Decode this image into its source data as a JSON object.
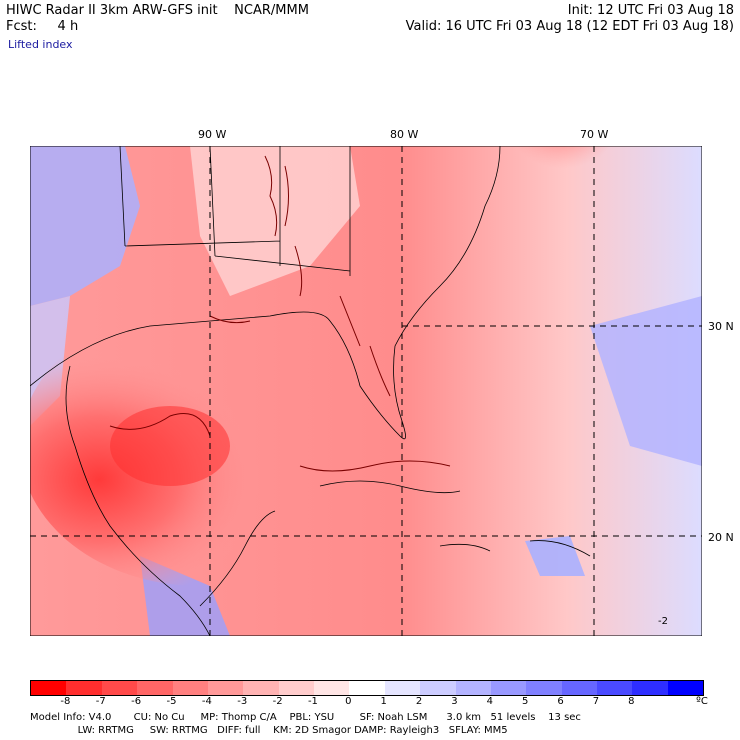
{
  "header": {
    "left_line1": "HIWC Radar II 3km ARW-GFS init    NCAR/MMM",
    "left_line2": "Fcst:     4 h",
    "field": "Lifted index",
    "init": "Init: 12 UTC Fri 03 Aug 18",
    "valid": "Valid: 16 UTC Fri 03 Aug 18 (12 EDT Fri 03 Aug 18)"
  },
  "map": {
    "lon_labels": [
      "90 W",
      "80 W",
      "70 W"
    ],
    "lat_labels": [
      "30 N",
      "20 N"
    ],
    "contour_label": "-2"
  },
  "colorbar": {
    "colors": [
      "#ff0000",
      "#ff2e2e",
      "#ff4a4a",
      "#ff6666",
      "#ff8080",
      "#ff9999",
      "#ffb3b3",
      "#ffcccc",
      "#ffe5e5",
      "#ffffff",
      "#e5e5ff",
      "#ccccff",
      "#b3b3ff",
      "#9999ff",
      "#8080ff",
      "#6666ff",
      "#4a4aff",
      "#2e2eff",
      "#0000ff"
    ],
    "labels": [
      "-8",
      "-7",
      "-6",
      "-5",
      "-4",
      "-3",
      "-2",
      "-1",
      "0",
      "1",
      "2",
      "3",
      "4",
      "5",
      "6",
      "7",
      "8"
    ],
    "units": "ºC"
  },
  "footer": {
    "line1": "Model Info: V4.0       CU: No Cu     MP: Thomp C/A    PBL: YSU        SF: Noah LSM      3.0 km   51 levels    13 sec",
    "line2": "               LW: RRTMG     SW: RRTMG   DIFF: full    KM: 2D Smagor DAMP: Rayleigh3   SFLAY: MM5"
  }
}
